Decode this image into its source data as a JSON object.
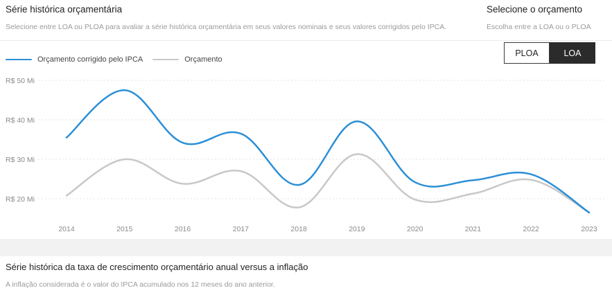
{
  "header": {
    "title": "Série histórica orçamentária",
    "subtitle": "Selecione entre LOA ou PLOA para avaliar a série histórica orçamentária em seus valores nominais e seus valores corrigidos pelo IPCA."
  },
  "selector": {
    "title": "Selecione o orçamento",
    "subtitle": "Escolha entre a LOA ou o PLOA",
    "options": [
      "PLOA",
      "LOA"
    ],
    "selected": "LOA"
  },
  "colors": {
    "corrigido": "#2b8fd6",
    "orcamento": "#c8c8c8",
    "grid": "#e3e3e3",
    "axis_text": "#8a8a8a"
  },
  "chart_data": {
    "type": "line",
    "x": [
      "2014",
      "2015",
      "2016",
      "2017",
      "2018",
      "2019",
      "2020",
      "2021",
      "2022",
      "2023"
    ],
    "series": [
      {
        "name": "Orçamento corrigido pelo IPCA",
        "values": [
          35.5,
          47.5,
          34.2,
          36.5,
          23.5,
          39.6,
          24.2,
          24.7,
          26.2,
          16.5
        ]
      },
      {
        "name": "Orçamento",
        "values": [
          20.8,
          30.0,
          23.8,
          27.0,
          17.8,
          31.3,
          19.8,
          21.3,
          24.8,
          16.5
        ]
      }
    ],
    "yticks": [
      "R$ 20 Mi",
      "R$ 30 Mi",
      "R$ 40 Mi",
      "R$ 50 Mi"
    ],
    "ytick_values": [
      20,
      30,
      40,
      50
    ],
    "ylim": [
      15,
      52
    ],
    "grid": "horizontal-dotted",
    "legend": "top-left"
  },
  "section2": {
    "title": "Série histórica da taxa de crescimento orçamentário anual versus a inflação",
    "subtitle": "A inflação considerada é o valor do IPCA acumulado nos 12 meses do ano anterior."
  }
}
